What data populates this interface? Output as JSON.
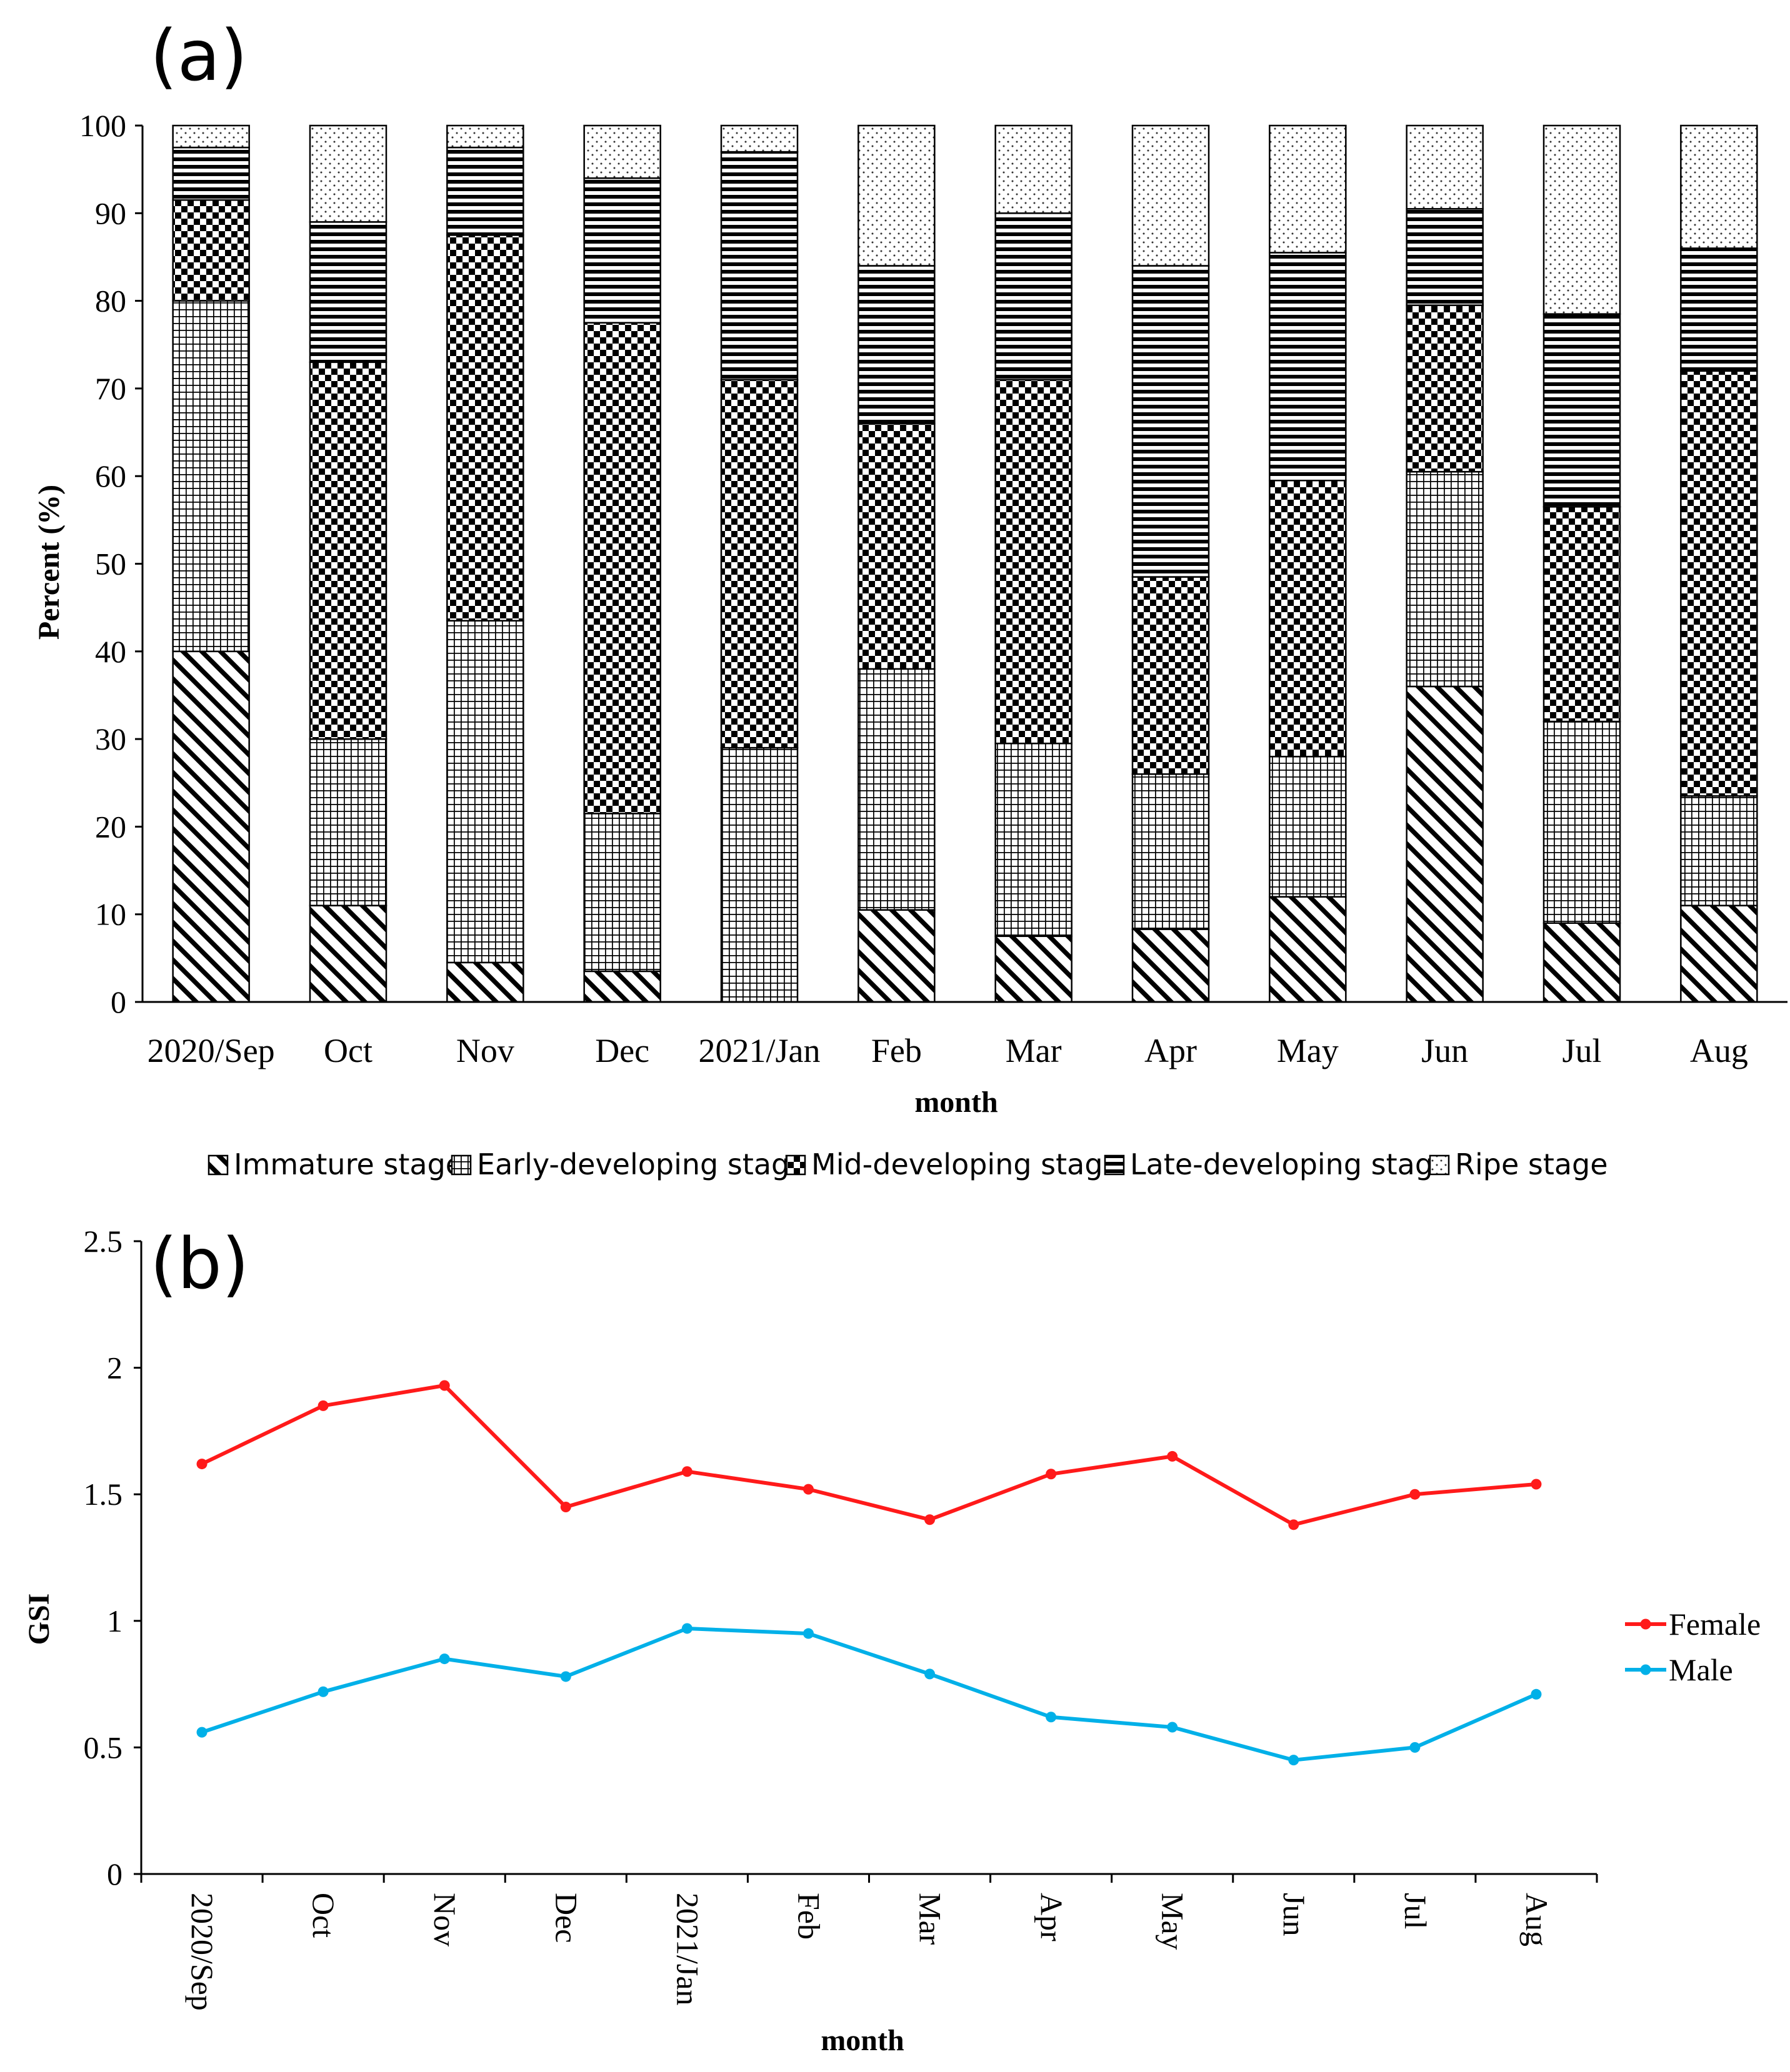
{
  "chart_data": [
    {
      "panel_label": "(a)",
      "type": "bar",
      "stacked": true,
      "xlabel": "month",
      "ylabel": "Percent (%)",
      "ylim": [
        0,
        100
      ],
      "yticks": [
        0,
        10,
        20,
        30,
        40,
        50,
        60,
        70,
        80,
        90,
        100
      ],
      "grid": false,
      "legend_position": "bottom",
      "categories": [
        "2020/Sep",
        "Oct",
        "Nov",
        "Dec",
        "2021/Jan",
        "Feb",
        "Mar",
        "Apr",
        "May",
        "Jun",
        "Jul",
        "Aug"
      ],
      "series": [
        {
          "name": "Immature stage",
          "pattern": "diagonal",
          "values": [
            40,
            11,
            4.5,
            3.5,
            0,
            10.5,
            7.5,
            8.3,
            12,
            36,
            9,
            11
          ]
        },
        {
          "name": "Early-developing stage",
          "pattern": "grid",
          "values": [
            40,
            19,
            39,
            18,
            29,
            27.5,
            22,
            17.7,
            16,
            24.5,
            23,
            12.5
          ]
        },
        {
          "name": "Mid-developing stage",
          "pattern": "checker",
          "values": [
            11.5,
            43,
            44,
            56,
            42,
            28,
            41.5,
            22.5,
            31.5,
            19,
            24.5,
            48.5
          ]
        },
        {
          "name": "Late-developing stage",
          "pattern": "horizontal",
          "values": [
            6,
            16,
            10,
            16.5,
            26,
            18,
            19,
            35.5,
            26,
            11,
            22,
            14
          ]
        },
        {
          "name": "Ripe stage",
          "pattern": "dots",
          "values": [
            2.5,
            11,
            2.5,
            6,
            3,
            16,
            10,
            16,
            14.5,
            9.5,
            21.5,
            14
          ]
        }
      ]
    },
    {
      "panel_label": "(b)",
      "type": "line",
      "xlabel": "month",
      "ylabel": "GSI",
      "ylim": [
        0,
        2.5
      ],
      "yticks": [
        "0",
        "0.5",
        "1",
        "1.5",
        "2",
        "2.5"
      ],
      "grid": false,
      "legend_position": "right",
      "categories": [
        "2020/Sep",
        "Oct",
        "Nov",
        "Dec",
        "2021/Jan",
        "Feb",
        "Mar",
        "Apr",
        "May",
        "Jun",
        "Jul",
        "Aug"
      ],
      "series": [
        {
          "name": "Female",
          "color": "#ff1a1a",
          "values": [
            1.62,
            1.85,
            1.93,
            1.45,
            1.59,
            1.52,
            1.4,
            1.58,
            1.65,
            1.38,
            1.5,
            1.54
          ]
        },
        {
          "name": "Male",
          "color": "#00b0e8",
          "values": [
            0.56,
            0.72,
            0.85,
            0.78,
            0.97,
            0.95,
            0.79,
            0.62,
            0.58,
            0.45,
            0.5,
            0.71
          ]
        }
      ]
    }
  ]
}
